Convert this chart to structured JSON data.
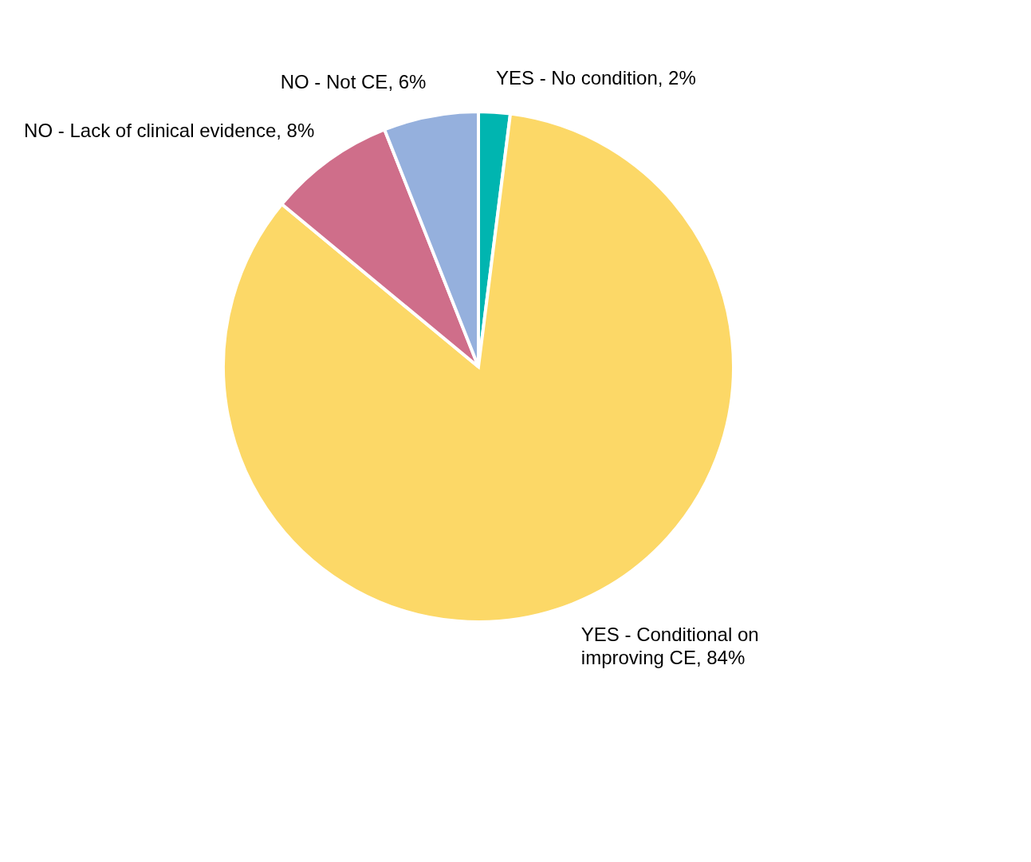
{
  "chart_data": {
    "type": "pie",
    "categories": [
      "YES - No condition, 2%",
      "YES - Conditional on\nimproving CE, 84%",
      "NO - Lack of clinical evidence, 8%",
      "NO - Not CE, 6%"
    ],
    "values": [
      2,
      84,
      8,
      6
    ],
    "colors": [
      "#00b5b0",
      "#fcd867",
      "#cf6e8a",
      "#95b0dd"
    ]
  }
}
